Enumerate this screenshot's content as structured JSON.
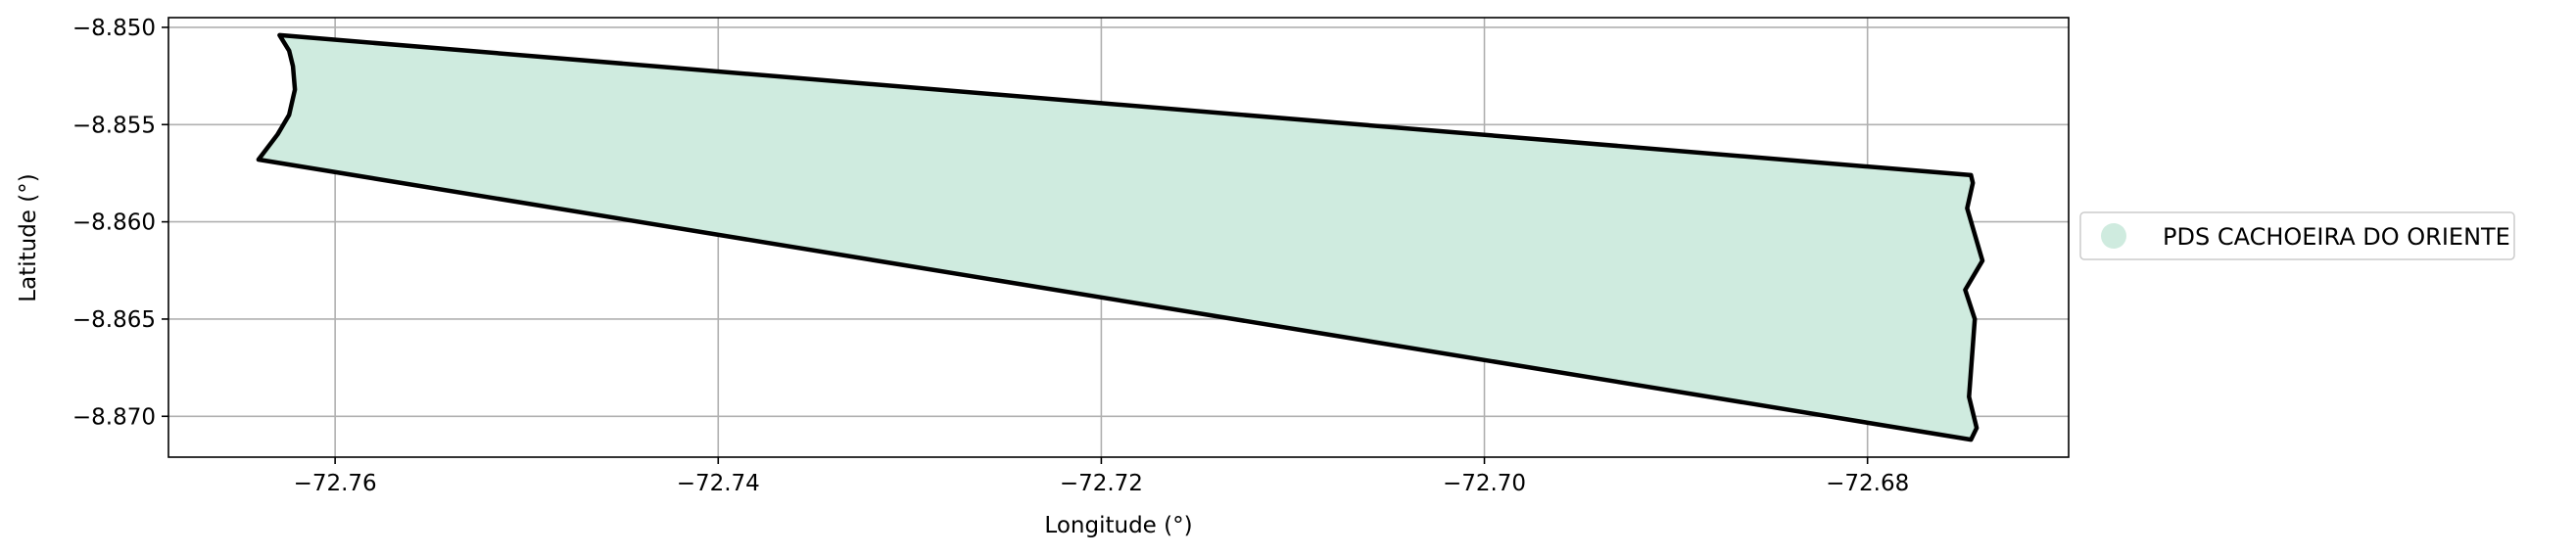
{
  "chart_data": {
    "type": "map",
    "title": "",
    "xlabel": "Longitude (°)",
    "ylabel": "Latitude (°)",
    "xlim": [
      -72.7687,
      -72.6695
    ],
    "ylim": [
      -8.8721,
      -8.8495
    ],
    "grid": true,
    "legend_position": "right, vertically centered",
    "x_ticks": [
      {
        "value": -72.76,
        "label": "−72.76"
      },
      {
        "value": -72.74,
        "label": "−72.74"
      },
      {
        "value": -72.72,
        "label": "−72.72"
      },
      {
        "value": -72.7,
        "label": "−72.70"
      },
      {
        "value": -72.68,
        "label": "−72.68"
      }
    ],
    "y_ticks": [
      {
        "value": -8.85,
        "label": "−8.850"
      },
      {
        "value": -8.855,
        "label": "−8.855"
      },
      {
        "value": -8.86,
        "label": "−8.860"
      },
      {
        "value": -8.865,
        "label": "−8.865"
      },
      {
        "value": -8.87,
        "label": "−8.870"
      }
    ],
    "polygons": [
      {
        "name": "PDS CACHOEIRA DO ORIENTE",
        "fill_color": "#cfebdf",
        "edge_color": "#000000",
        "coordinates": [
          [
            -72.7629,
            -8.8504
          ],
          [
            -72.6746,
            -8.8576
          ],
          [
            -72.6745,
            -8.858
          ],
          [
            -72.6748,
            -8.8593
          ],
          [
            -72.674,
            -8.862
          ],
          [
            -72.6749,
            -8.8635
          ],
          [
            -72.6744,
            -8.865
          ],
          [
            -72.6747,
            -8.869
          ],
          [
            -72.6743,
            -8.8706
          ],
          [
            -72.6746,
            -8.8712
          ],
          [
            -72.764,
            -8.8568
          ],
          [
            -72.763,
            -8.8555
          ],
          [
            -72.7624,
            -8.8545
          ],
          [
            -72.7621,
            -8.8532
          ],
          [
            -72.7622,
            -8.852
          ],
          [
            -72.7624,
            -8.8512
          ]
        ]
      }
    ]
  },
  "legend": {
    "entries": [
      {
        "label": "PDS CACHOEIRA DO ORIENTE",
        "color": "#cfebdf"
      }
    ]
  }
}
